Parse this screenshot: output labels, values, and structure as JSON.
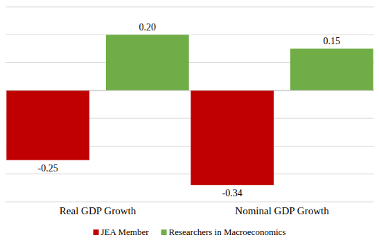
{
  "chart_data": {
    "type": "bar",
    "categories": [
      "Real GDP Growth",
      "Nominal GDP Growth"
    ],
    "series": [
      {
        "name": "JEA Member",
        "color": "#c00000",
        "values": [
          -0.25,
          -0.34
        ]
      },
      {
        "name": "Researchers in Macroeconomics",
        "color": "#70ad47",
        "values": [
          0.2,
          0.15
        ]
      }
    ],
    "ylim": [
      -0.4,
      0.3
    ],
    "yticks": [
      -0.4,
      -0.3,
      -0.2,
      -0.1,
      0,
      0.1,
      0.2,
      0.3
    ],
    "grid": true,
    "data_labels": true,
    "tick_labels": "x",
    "legend": "bottom"
  }
}
